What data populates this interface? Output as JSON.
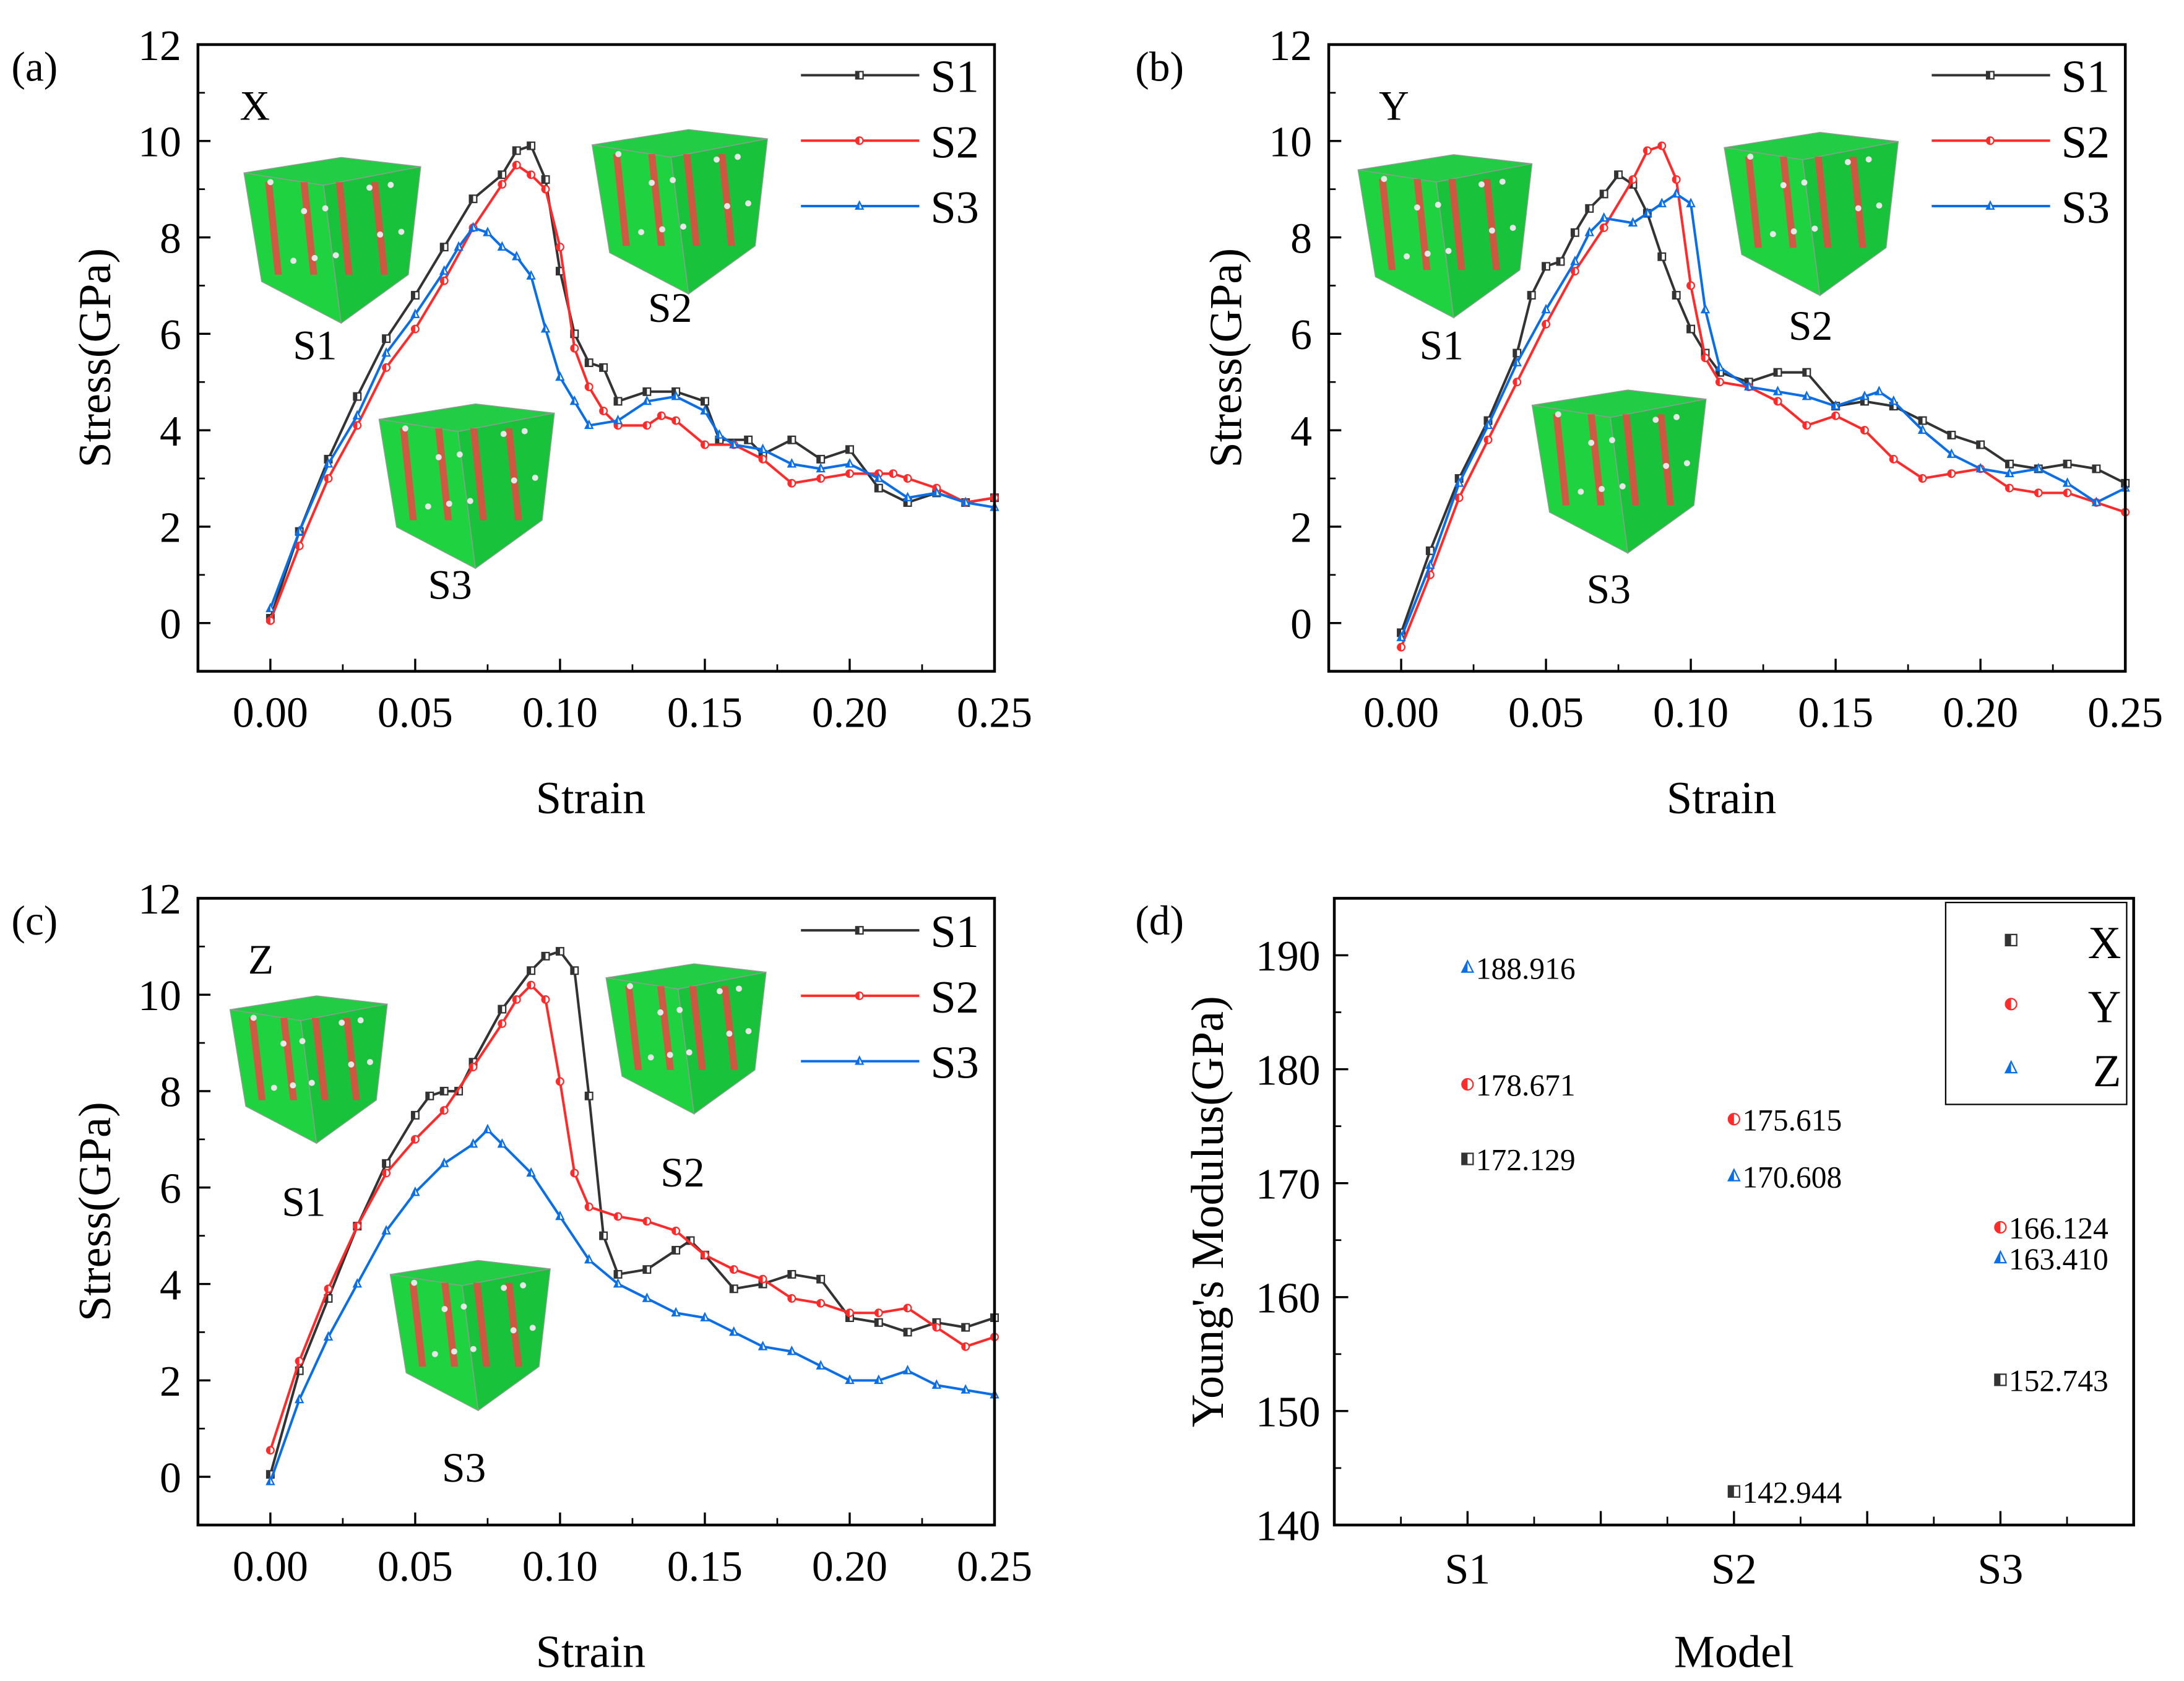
{
  "chart_data": [
    {
      "type": "line",
      "panel_label": "(a)",
      "direction_label": "X",
      "xlabel": "Strain",
      "ylabel": "Stress(GPa)",
      "xlim": [
        -0.025,
        0.25
      ],
      "ylim": [
        -1,
        12
      ],
      "xticks": [
        "0.00",
        "0.05",
        "0.10",
        "0.15",
        "0.20",
        "0.25"
      ],
      "yticks": [
        "0",
        "2",
        "4",
        "6",
        "8",
        "10",
        "12"
      ],
      "legend_position": "top-right",
      "inset_labels": [
        "S1",
        "S2",
        "S3"
      ],
      "series": [
        {
          "name": "S1",
          "color": "#333333",
          "marker": "square",
          "x": [
            0,
            0.01,
            0.02,
            0.03,
            0.04,
            0.05,
            0.06,
            0.07,
            0.08,
            0.085,
            0.09,
            0.095,
            0.1,
            0.105,
            0.11,
            0.115,
            0.12,
            0.13,
            0.14,
            0.15,
            0.155,
            0.165,
            0.17,
            0.18,
            0.19,
            0.2,
            0.21,
            0.22,
            0.23,
            0.24,
            0.25
          ],
          "y": [
            0.1,
            1.9,
            3.4,
            4.7,
            5.9,
            6.8,
            7.8,
            8.8,
            9.3,
            9.8,
            9.9,
            9.2,
            7.3,
            6.0,
            5.4,
            5.3,
            4.6,
            4.8,
            4.8,
            4.6,
            3.8,
            3.8,
            3.5,
            3.8,
            3.4,
            3.6,
            2.8,
            2.5,
            2.7,
            2.5,
            2.6
          ]
        },
        {
          "name": "S2",
          "color": "#ff2a2a",
          "marker": "circle",
          "x": [
            0,
            0.01,
            0.02,
            0.03,
            0.04,
            0.05,
            0.06,
            0.07,
            0.08,
            0.085,
            0.09,
            0.095,
            0.1,
            0.105,
            0.11,
            0.115,
            0.12,
            0.13,
            0.135,
            0.14,
            0.15,
            0.16,
            0.17,
            0.18,
            0.19,
            0.2,
            0.21,
            0.215,
            0.22,
            0.23,
            0.24,
            0.25
          ],
          "y": [
            0.05,
            1.6,
            3.0,
            4.1,
            5.3,
            6.1,
            7.1,
            8.2,
            9.1,
            9.5,
            9.3,
            9.0,
            7.8,
            5.7,
            4.9,
            4.4,
            4.1,
            4.1,
            4.3,
            4.2,
            3.7,
            3.7,
            3.4,
            2.9,
            3.0,
            3.1,
            3.1,
            3.1,
            3.0,
            2.8,
            2.5,
            2.6
          ]
        },
        {
          "name": "S3",
          "color": "#0a6ee6",
          "marker": "triangle",
          "x": [
            0,
            0.01,
            0.02,
            0.03,
            0.04,
            0.05,
            0.06,
            0.065,
            0.07,
            0.075,
            0.08,
            0.085,
            0.09,
            0.095,
            0.1,
            0.105,
            0.11,
            0.12,
            0.13,
            0.14,
            0.15,
            0.155,
            0.16,
            0.17,
            0.18,
            0.19,
            0.2,
            0.21,
            0.22,
            0.23,
            0.24,
            0.25
          ],
          "y": [
            0.3,
            1.9,
            3.3,
            4.3,
            5.6,
            6.4,
            7.3,
            7.8,
            8.2,
            8.1,
            7.8,
            7.6,
            7.2,
            6.1,
            5.1,
            4.6,
            4.1,
            4.2,
            4.6,
            4.7,
            4.4,
            3.9,
            3.7,
            3.6,
            3.3,
            3.2,
            3.3,
            3.0,
            2.6,
            2.7,
            2.5,
            2.4
          ]
        }
      ]
    },
    {
      "type": "line",
      "panel_label": "(b)",
      "direction_label": "Y",
      "xlabel": "Strain",
      "ylabel": "Stress(GPa)",
      "xlim": [
        -0.025,
        0.25
      ],
      "ylim": [
        -1,
        12
      ],
      "xticks": [
        "0.00",
        "0.05",
        "0.10",
        "0.15",
        "0.20",
        "0.25"
      ],
      "yticks": [
        "0",
        "2",
        "4",
        "6",
        "8",
        "10",
        "12"
      ],
      "legend_position": "top-right",
      "inset_labels": [
        "S1",
        "S2",
        "S3"
      ],
      "series": [
        {
          "name": "S1",
          "color": "#333333",
          "marker": "square",
          "x": [
            0,
            0.01,
            0.02,
            0.03,
            0.04,
            0.045,
            0.05,
            0.055,
            0.06,
            0.065,
            0.07,
            0.075,
            0.08,
            0.085,
            0.09,
            0.095,
            0.1,
            0.105,
            0.11,
            0.12,
            0.13,
            0.14,
            0.15,
            0.16,
            0.17,
            0.18,
            0.19,
            0.2,
            0.21,
            0.22,
            0.23,
            0.24,
            0.25
          ],
          "y": [
            -0.2,
            1.5,
            3.0,
            4.2,
            5.6,
            6.8,
            7.4,
            7.5,
            8.1,
            8.6,
            8.9,
            9.3,
            9.1,
            8.5,
            7.6,
            6.8,
            6.1,
            5.6,
            5.2,
            5.0,
            5.2,
            5.2,
            4.5,
            4.6,
            4.5,
            4.2,
            3.9,
            3.7,
            3.3,
            3.2,
            3.3,
            3.2,
            2.9
          ]
        },
        {
          "name": "S2",
          "color": "#ff2a2a",
          "marker": "circle",
          "x": [
            0,
            0.01,
            0.02,
            0.03,
            0.04,
            0.05,
            0.06,
            0.07,
            0.08,
            0.085,
            0.09,
            0.095,
            0.1,
            0.105,
            0.11,
            0.12,
            0.13,
            0.14,
            0.15,
            0.16,
            0.17,
            0.18,
            0.19,
            0.2,
            0.21,
            0.22,
            0.23,
            0.24,
            0.25
          ],
          "y": [
            -0.5,
            1.0,
            2.6,
            3.8,
            5.0,
            6.2,
            7.3,
            8.2,
            9.2,
            9.8,
            9.9,
            9.2,
            7.0,
            5.5,
            5.0,
            4.9,
            4.6,
            4.1,
            4.3,
            4.0,
            3.4,
            3.0,
            3.1,
            3.2,
            2.8,
            2.7,
            2.7,
            2.5,
            2.3
          ]
        },
        {
          "name": "S3",
          "color": "#0a6ee6",
          "marker": "triangle",
          "x": [
            0,
            0.01,
            0.02,
            0.03,
            0.04,
            0.05,
            0.06,
            0.065,
            0.07,
            0.08,
            0.085,
            0.09,
            0.095,
            0.1,
            0.105,
            0.11,
            0.12,
            0.13,
            0.14,
            0.15,
            0.16,
            0.165,
            0.17,
            0.18,
            0.19,
            0.2,
            0.21,
            0.22,
            0.23,
            0.24,
            0.25
          ],
          "y": [
            -0.3,
            1.2,
            2.9,
            4.1,
            5.4,
            6.5,
            7.5,
            8.1,
            8.4,
            8.3,
            8.5,
            8.7,
            8.9,
            8.7,
            6.5,
            5.3,
            4.9,
            4.8,
            4.7,
            4.5,
            4.7,
            4.8,
            4.6,
            4.0,
            3.5,
            3.2,
            3.1,
            3.2,
            2.9,
            2.5,
            2.8
          ]
        }
      ]
    },
    {
      "type": "line",
      "panel_label": "(c)",
      "direction_label": "Z",
      "xlabel": "Strain",
      "ylabel": "Stress(GPa)",
      "xlim": [
        -0.025,
        0.25
      ],
      "ylim": [
        -1,
        12
      ],
      "xticks": [
        "0.00",
        "0.05",
        "0.10",
        "0.15",
        "0.20",
        "0.25"
      ],
      "yticks": [
        "0",
        "2",
        "4",
        "6",
        "8",
        "10",
        "12"
      ],
      "legend_position": "top-right",
      "inset_labels": [
        "S1",
        "S2",
        "S3"
      ],
      "series": [
        {
          "name": "S1",
          "color": "#333333",
          "marker": "square",
          "x": [
            0,
            0.01,
            0.02,
            0.03,
            0.04,
            0.05,
            0.055,
            0.06,
            0.065,
            0.07,
            0.08,
            0.09,
            0.095,
            0.1,
            0.105,
            0.11,
            0.115,
            0.12,
            0.13,
            0.14,
            0.145,
            0.15,
            0.16,
            0.17,
            0.18,
            0.19,
            0.2,
            0.21,
            0.22,
            0.23,
            0.24,
            0.25
          ],
          "y": [
            0.05,
            2.2,
            3.7,
            5.2,
            6.5,
            7.5,
            7.9,
            8.0,
            8.0,
            8.6,
            9.7,
            10.5,
            10.8,
            10.9,
            10.5,
            7.9,
            5.0,
            4.2,
            4.3,
            4.7,
            4.9,
            4.6,
            3.9,
            4.0,
            4.2,
            4.1,
            3.3,
            3.2,
            3.0,
            3.2,
            3.1,
            3.3
          ]
        },
        {
          "name": "S2",
          "color": "#ff2a2a",
          "marker": "circle",
          "x": [
            0,
            0.01,
            0.02,
            0.03,
            0.04,
            0.05,
            0.06,
            0.07,
            0.08,
            0.085,
            0.09,
            0.095,
            0.1,
            0.105,
            0.11,
            0.12,
            0.13,
            0.14,
            0.15,
            0.16,
            0.17,
            0.18,
            0.19,
            0.2,
            0.21,
            0.22,
            0.23,
            0.24,
            0.25
          ],
          "y": [
            0.55,
            2.4,
            3.9,
            5.2,
            6.3,
            7.0,
            7.6,
            8.5,
            9.4,
            9.9,
            10.2,
            9.9,
            8.2,
            6.3,
            5.6,
            5.4,
            5.3,
            5.1,
            4.6,
            4.3,
            4.1,
            3.7,
            3.6,
            3.4,
            3.4,
            3.5,
            3.1,
            2.7,
            2.9
          ]
        },
        {
          "name": "S3",
          "color": "#0a6ee6",
          "marker": "triangle",
          "x": [
            0,
            0.01,
            0.02,
            0.03,
            0.04,
            0.05,
            0.06,
            0.07,
            0.075,
            0.08,
            0.09,
            0.1,
            0.11,
            0.12,
            0.13,
            0.14,
            0.15,
            0.16,
            0.17,
            0.18,
            0.19,
            0.2,
            0.21,
            0.22,
            0.23,
            0.24,
            0.25
          ],
          "y": [
            -0.1,
            1.6,
            2.9,
            4.0,
            5.1,
            5.9,
            6.5,
            6.9,
            7.2,
            6.9,
            6.3,
            5.4,
            4.5,
            4.0,
            3.7,
            3.4,
            3.3,
            3.0,
            2.7,
            2.6,
            2.3,
            2.0,
            2.0,
            2.2,
            1.9,
            1.8,
            1.7
          ]
        }
      ]
    },
    {
      "type": "scatter",
      "panel_label": "(d)",
      "xlabel": "Model",
      "ylabel": "Young's Modulus(GPa)",
      "categories": [
        "S1",
        "S2",
        "S3"
      ],
      "ylim": [
        140,
        195
      ],
      "yticks": [
        "140",
        "150",
        "160",
        "170",
        "180",
        "190"
      ],
      "legend_position": "top-right",
      "series": [
        {
          "name": "X",
          "color": "#333333",
          "marker": "square",
          "values": [
            172.129,
            142.944,
            152.743
          ],
          "labels": [
            "172.129",
            "142.944",
            "152.743"
          ]
        },
        {
          "name": "Y",
          "color": "#ff2a2a",
          "marker": "circle",
          "values": [
            178.671,
            175.615,
            166.124
          ],
          "labels": [
            "178.671",
            "175.615",
            "166.124"
          ]
        },
        {
          "name": "Z",
          "color": "#0a6ee6",
          "marker": "triangle",
          "values": [
            188.916,
            170.608,
            163.41
          ],
          "labels": [
            "188.916",
            "170.608",
            "163.410"
          ]
        }
      ]
    }
  ]
}
